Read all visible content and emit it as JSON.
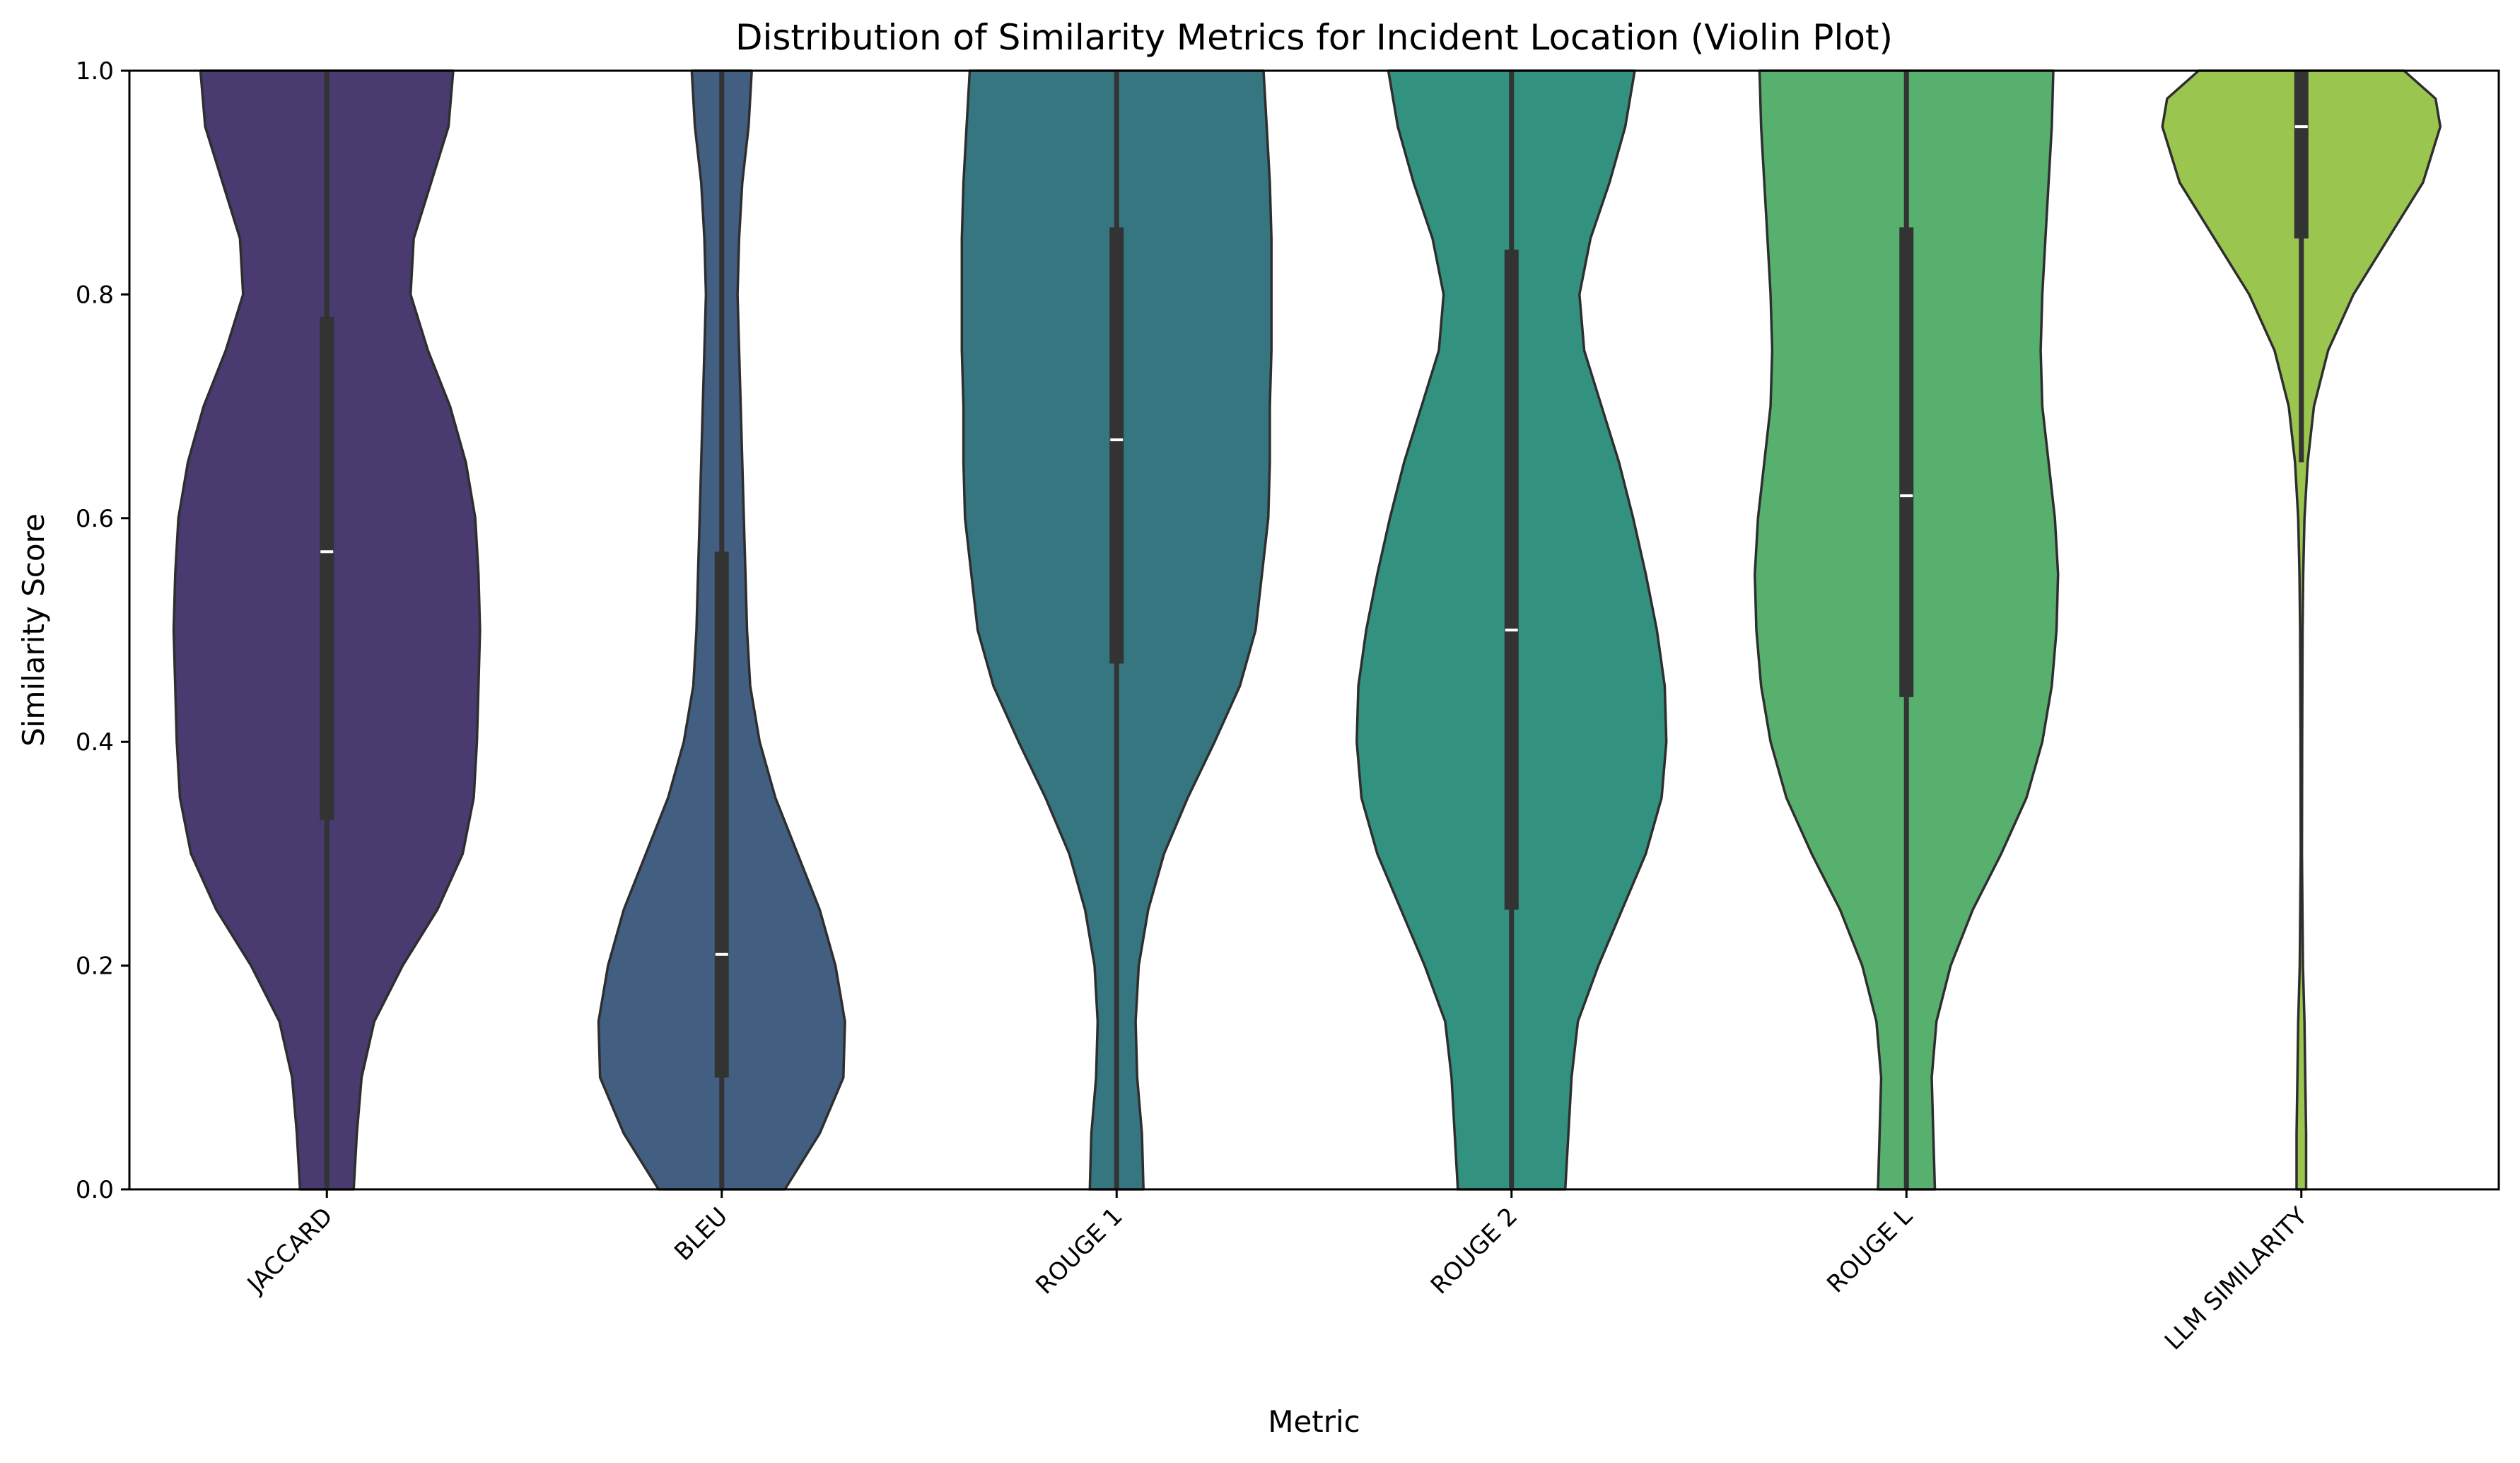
{
  "chart_data": {
    "type": "violin",
    "title": "Distribution of Similarity Metrics for Incident Location (Violin Plot)",
    "xlabel": "Metric",
    "ylabel": "Similarity Score",
    "ylim": [
      0,
      1
    ],
    "yticks": [
      "0.0",
      "0.2",
      "0.4",
      "0.6",
      "0.8",
      "1.0"
    ],
    "grid": false,
    "legend": "none",
    "categories": [
      "JACCARD",
      "BLEU",
      "ROUGE 1",
      "ROUGE 2",
      "ROUGE L",
      "LLM SIMILARITY"
    ],
    "series": [
      {
        "color": "#493a70",
        "quartiles": {
          "q1": 0.33,
          "median": 0.57,
          "q3": 0.78
        },
        "whisker": [
          0.0,
          1.0
        ],
        "density": [
          [
            0.0,
            0.17
          ],
          [
            0.05,
            0.19
          ],
          [
            0.1,
            0.22
          ],
          [
            0.15,
            0.3
          ],
          [
            0.2,
            0.48
          ],
          [
            0.25,
            0.7
          ],
          [
            0.3,
            0.86
          ],
          [
            0.35,
            0.93
          ],
          [
            0.4,
            0.95
          ],
          [
            0.45,
            0.96
          ],
          [
            0.5,
            0.97
          ],
          [
            0.55,
            0.96
          ],
          [
            0.6,
            0.94
          ],
          [
            0.65,
            0.88
          ],
          [
            0.7,
            0.78
          ],
          [
            0.75,
            0.64
          ],
          [
            0.8,
            0.53
          ],
          [
            0.85,
            0.55
          ],
          [
            0.9,
            0.66
          ],
          [
            0.95,
            0.77
          ],
          [
            1.0,
            0.8
          ]
        ]
      },
      {
        "color": "#425e80",
        "quartiles": {
          "q1": 0.1,
          "median": 0.21,
          "q3": 0.57
        },
        "whisker": [
          0.0,
          1.0
        ],
        "density": [
          [
            0.0,
            0.4
          ],
          [
            0.05,
            0.62
          ],
          [
            0.1,
            0.77
          ],
          [
            0.15,
            0.78
          ],
          [
            0.2,
            0.72
          ],
          [
            0.25,
            0.62
          ],
          [
            0.3,
            0.48
          ],
          [
            0.35,
            0.34
          ],
          [
            0.4,
            0.24
          ],
          [
            0.45,
            0.18
          ],
          [
            0.5,
            0.16
          ],
          [
            0.55,
            0.15
          ],
          [
            0.6,
            0.14
          ],
          [
            0.65,
            0.13
          ],
          [
            0.7,
            0.12
          ],
          [
            0.75,
            0.11
          ],
          [
            0.8,
            0.1
          ],
          [
            0.85,
            0.11
          ],
          [
            0.9,
            0.13
          ],
          [
            0.95,
            0.17
          ],
          [
            1.0,
            0.19
          ]
        ]
      },
      {
        "color": "#357681",
        "quartiles": {
          "q1": 0.47,
          "median": 0.67,
          "q3": 0.86
        },
        "whisker": [
          0.0,
          1.0
        ],
        "density": [
          [
            0.0,
            0.17
          ],
          [
            0.05,
            0.16
          ],
          [
            0.1,
            0.13
          ],
          [
            0.15,
            0.12
          ],
          [
            0.2,
            0.14
          ],
          [
            0.25,
            0.2
          ],
          [
            0.3,
            0.3
          ],
          [
            0.35,
            0.45
          ],
          [
            0.4,
            0.62
          ],
          [
            0.45,
            0.78
          ],
          [
            0.5,
            0.88
          ],
          [
            0.55,
            0.92
          ],
          [
            0.6,
            0.96
          ],
          [
            0.65,
            0.97
          ],
          [
            0.7,
            0.97
          ],
          [
            0.75,
            0.98
          ],
          [
            0.8,
            0.98
          ],
          [
            0.85,
            0.98
          ],
          [
            0.9,
            0.97
          ],
          [
            0.95,
            0.95
          ],
          [
            1.0,
            0.93
          ]
        ]
      },
      {
        "color": "#32927f",
        "quartiles": {
          "q1": 0.25,
          "median": 0.5,
          "q3": 0.84
        },
        "whisker": [
          0.0,
          1.0
        ],
        "density": [
          [
            0.0,
            0.34
          ],
          [
            0.05,
            0.36
          ],
          [
            0.1,
            0.38
          ],
          [
            0.15,
            0.42
          ],
          [
            0.2,
            0.55
          ],
          [
            0.25,
            0.7
          ],
          [
            0.3,
            0.85
          ],
          [
            0.35,
            0.95
          ],
          [
            0.4,
            0.98
          ],
          [
            0.45,
            0.97
          ],
          [
            0.5,
            0.92
          ],
          [
            0.55,
            0.85
          ],
          [
            0.6,
            0.77
          ],
          [
            0.65,
            0.68
          ],
          [
            0.7,
            0.57
          ],
          [
            0.75,
            0.46
          ],
          [
            0.8,
            0.43
          ],
          [
            0.85,
            0.5
          ],
          [
            0.9,
            0.62
          ],
          [
            0.95,
            0.72
          ],
          [
            1.0,
            0.78
          ]
        ]
      },
      {
        "color": "#58b06f",
        "quartiles": {
          "q1": 0.44,
          "median": 0.62,
          "q3": 0.86
        },
        "whisker": [
          0.0,
          1.0
        ],
        "density": [
          [
            0.0,
            0.18
          ],
          [
            0.05,
            0.17
          ],
          [
            0.1,
            0.16
          ],
          [
            0.15,
            0.19
          ],
          [
            0.2,
            0.28
          ],
          [
            0.25,
            0.42
          ],
          [
            0.3,
            0.6
          ],
          [
            0.35,
            0.76
          ],
          [
            0.4,
            0.86
          ],
          [
            0.45,
            0.92
          ],
          [
            0.5,
            0.95
          ],
          [
            0.55,
            0.96
          ],
          [
            0.6,
            0.94
          ],
          [
            0.65,
            0.9
          ],
          [
            0.7,
            0.86
          ],
          [
            0.75,
            0.85
          ],
          [
            0.8,
            0.86
          ],
          [
            0.85,
            0.88
          ],
          [
            0.9,
            0.9
          ],
          [
            0.95,
            0.92
          ],
          [
            1.0,
            0.93
          ]
        ]
      },
      {
        "color": "#9ac54e",
        "quartiles": {
          "q1": 0.85,
          "median": 0.95,
          "q3": 1.0
        },
        "whisker": [
          0.65,
          1.0
        ],
        "density": [
          [
            0.0,
            0.03
          ],
          [
            0.05,
            0.03
          ],
          [
            0.1,
            0.025
          ],
          [
            0.15,
            0.02
          ],
          [
            0.2,
            0.01
          ],
          [
            0.3,
            0.004
          ],
          [
            0.4,
            0.005
          ],
          [
            0.5,
            0.008
          ],
          [
            0.55,
            0.012
          ],
          [
            0.6,
            0.02
          ],
          [
            0.65,
            0.04
          ],
          [
            0.7,
            0.08
          ],
          [
            0.75,
            0.17
          ],
          [
            0.8,
            0.33
          ],
          [
            0.85,
            0.55
          ],
          [
            0.9,
            0.77
          ],
          [
            0.95,
            0.88
          ],
          [
            0.975,
            0.85
          ],
          [
            1.0,
            0.65
          ]
        ]
      }
    ]
  }
}
